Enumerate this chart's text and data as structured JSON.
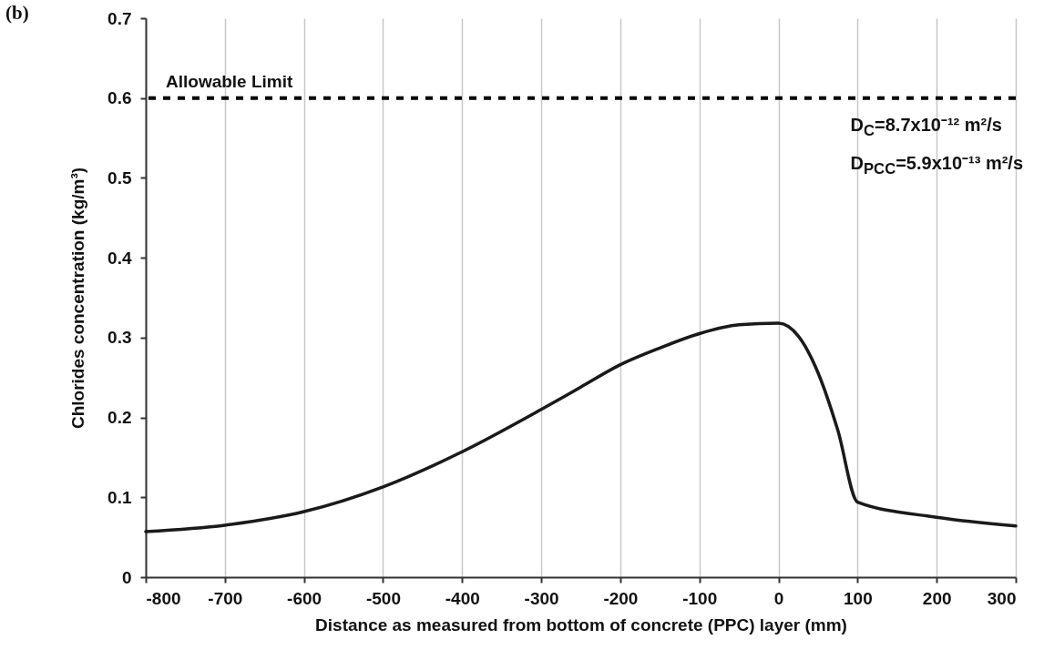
{
  "chart_data": {
    "type": "line",
    "title": "(b)",
    "xlabel": "Distance as measured from bottom of concrete (PPC) layer (mm)",
    "ylabel": "Chlorides concentration (kg/m³)",
    "x": [
      -800,
      -700,
      -600,
      -500,
      -400,
      -300,
      -250,
      -200,
      -150,
      -100,
      -50,
      0,
      25,
      50,
      75,
      100,
      200,
      300
    ],
    "series": [
      {
        "color": "#1a1a1a",
        "values": [
          0.057,
          0.065,
          0.082,
          0.113,
          0.157,
          0.21,
          0.238,
          0.266,
          0.287,
          0.305,
          0.316,
          0.318,
          0.302,
          0.256,
          0.184,
          0.094,
          0.075,
          0.064
        ]
      }
    ],
    "xlim": [
      -800,
      300
    ],
    "xticks": [
      -800,
      -700,
      -600,
      -500,
      -400,
      -300,
      -200,
      -100,
      0,
      100,
      200,
      300
    ],
    "ylim": [
      0,
      0.7
    ],
    "yticks": [
      0,
      0.1,
      0.2,
      0.3,
      0.4,
      0.5,
      0.6,
      0.7
    ],
    "grid": "x",
    "marker": "none",
    "line_style": "solid",
    "ref_lines": [
      {
        "axis": "y",
        "value": 0.6,
        "label": "Allowable Limit",
        "color": "#000000",
        "line_style": "dashed"
      }
    ],
    "annotations": [
      "D$_{C}$=8.7x10⁻¹² m²/s",
      "D$_{PCC}$=5.9x10⁻¹³ m²/s"
    ]
  }
}
